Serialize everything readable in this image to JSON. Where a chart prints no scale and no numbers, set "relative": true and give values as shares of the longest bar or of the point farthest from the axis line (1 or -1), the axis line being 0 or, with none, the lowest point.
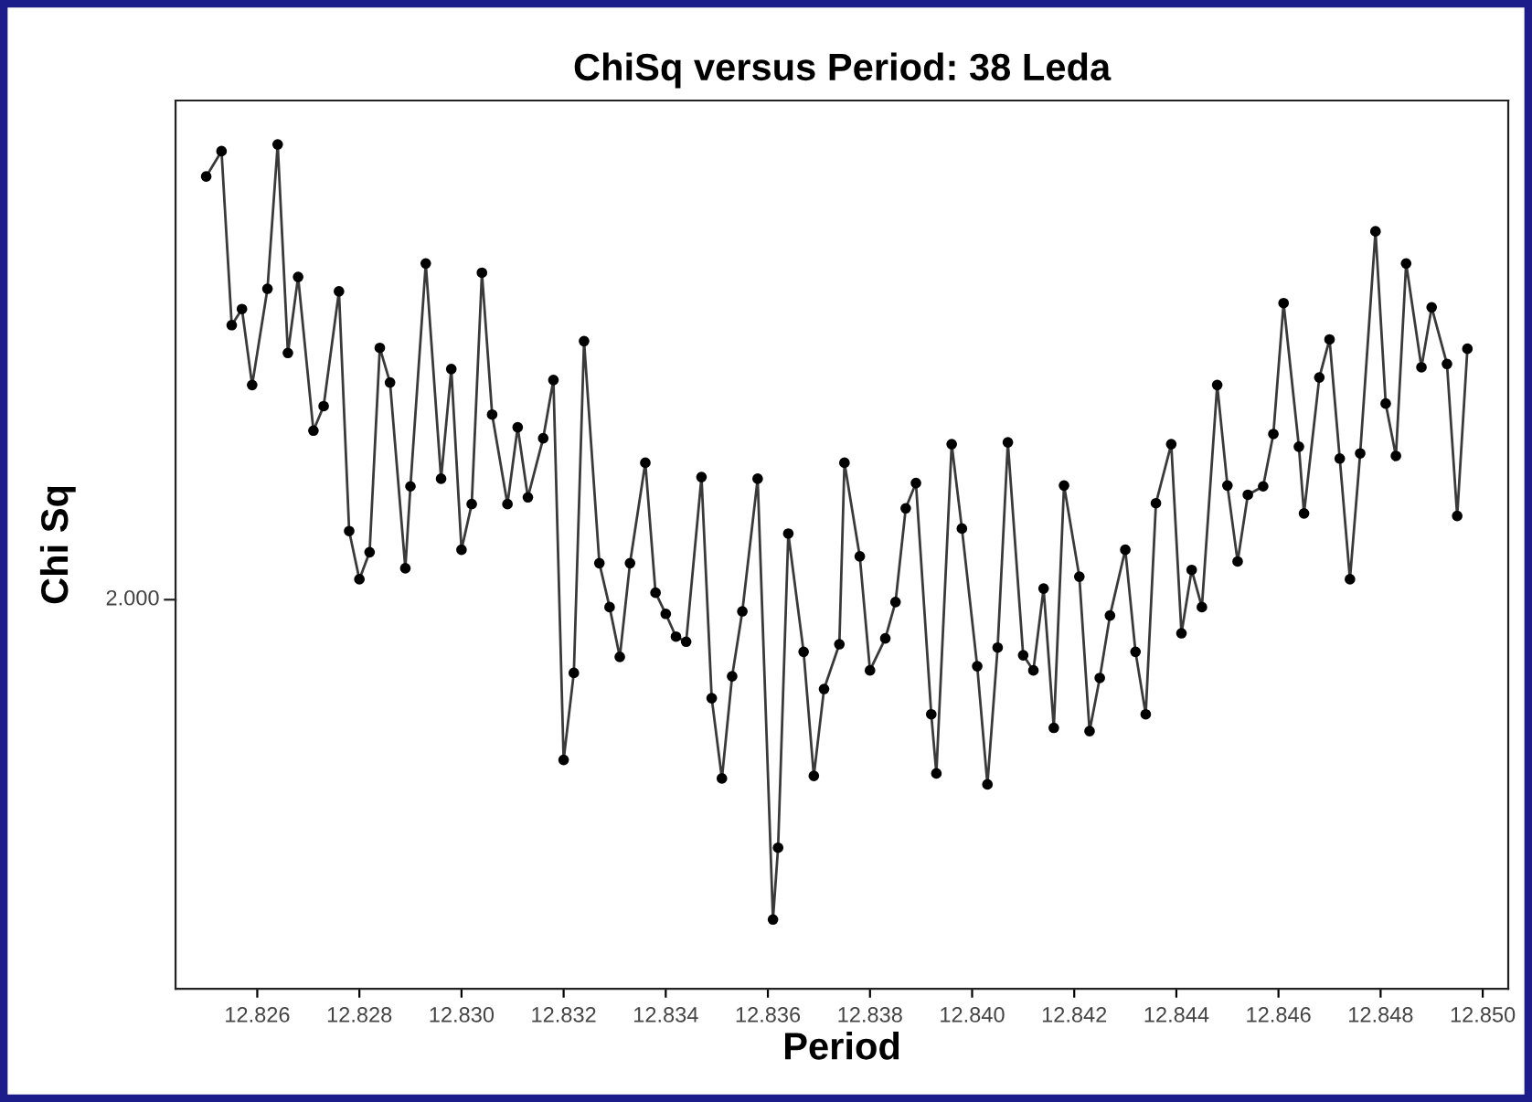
{
  "chart_data": {
    "type": "line",
    "title": "ChiSq versus Period: 38 Leda",
    "xlabel": "Period",
    "ylabel": "Chi Sq",
    "relative": true,
    "marker": "circle",
    "line_style": "solid",
    "grid": false,
    "legend": false,
    "annotations": [
      "2.000"
    ],
    "xlim": [
      12.8244,
      12.8505
    ],
    "xticks": [
      12.826,
      12.828,
      {
        "value": 12.83,
        "label": "12.830"
      },
      12.832,
      12.834,
      12.836,
      12.838,
      {
        "value": 12.84,
        "label": "12.840"
      },
      12.842,
      12.844,
      12.846,
      12.848,
      {
        "value": 12.85,
        "label": "12.850"
      }
    ],
    "x": [
      12.825,
      12.8253,
      12.8255,
      12.8257,
      12.8259,
      12.8262,
      12.8264,
      12.8266,
      12.8268,
      12.8271,
      12.8273,
      12.8276,
      12.8278,
      12.828,
      12.8282,
      12.8284,
      12.8286,
      12.8289,
      12.829,
      12.8293,
      12.8296,
      12.8298,
      12.83,
      12.8302,
      12.8304,
      12.8306,
      12.8309,
      12.8311,
      12.8313,
      12.8316,
      12.8318,
      12.832,
      12.8322,
      12.8324,
      12.8327,
      12.8329,
      12.8331,
      12.8333,
      12.8336,
      12.8338,
      12.834,
      12.8342,
      12.8344,
      12.8347,
      12.8349,
      12.8351,
      12.8353,
      12.8355,
      12.8358,
      12.8361,
      12.8362,
      12.8364,
      12.8367,
      12.8369,
      12.8371,
      12.8374,
      12.8375,
      12.8378,
      12.838,
      12.8383,
      12.8385,
      12.8387,
      12.8389,
      12.8392,
      12.8393,
      12.8396,
      12.8398,
      12.8401,
      12.8403,
      12.8405,
      12.8407,
      12.841,
      12.8412,
      12.8414,
      12.8416,
      12.8418,
      12.8421,
      12.8423,
      12.8425,
      12.8427,
      12.843,
      12.8432,
      12.8434,
      12.8436,
      12.8439,
      12.8441,
      12.8443,
      12.8445,
      12.8448,
      12.845,
      12.8452,
      12.8454,
      12.8457,
      12.8459,
      12.8461,
      12.8464,
      12.8465,
      12.8468,
      12.847,
      12.8472,
      12.8474,
      12.8476,
      12.8479,
      12.8481,
      12.8483,
      12.8485,
      12.8488,
      12.849,
      12.8493,
      12.8495,
      12.8497
    ],
    "series": [
      {
        "color": "#3a3a3a",
        "values": [
          0.962,
          0.992,
          0.786,
          0.805,
          0.715,
          0.829,
          1.0,
          0.753,
          0.843,
          0.661,
          0.69,
          0.826,
          0.542,
          0.485,
          0.517,
          0.759,
          0.718,
          0.498,
          0.595,
          0.859,
          0.604,
          0.734,
          0.52,
          0.574,
          0.848,
          0.68,
          0.574,
          0.665,
          0.582,
          0.652,
          0.721,
          0.271,
          0.374,
          0.767,
          0.504,
          0.452,
          0.393,
          0.504,
          0.623,
          0.469,
          0.444,
          0.417,
          0.411,
          0.606,
          0.344,
          0.249,
          0.37,
          0.447,
          0.604,
          0.082,
          0.167,
          0.539,
          0.399,
          0.252,
          0.355,
          0.408,
          0.623,
          0.512,
          0.377,
          0.415,
          0.458,
          0.569,
          0.599,
          0.325,
          0.255,
          0.645,
          0.545,
          0.382,
          0.242,
          0.404,
          0.647,
          0.395,
          0.377,
          0.474,
          0.309,
          0.596,
          0.488,
          0.305,
          0.368,
          0.442,
          0.52,
          0.399,
          0.325,
          0.575,
          0.645,
          0.421,
          0.496,
          0.452,
          0.715,
          0.596,
          0.506,
          0.585,
          0.595,
          0.657,
          0.812,
          0.642,
          0.563,
          0.724,
          0.769,
          0.628,
          0.485,
          0.634,
          0.897,
          0.693,
          0.631,
          0.859,
          0.736,
          0.807,
          0.74,
          0.56,
          0.758
        ]
      }
    ]
  }
}
